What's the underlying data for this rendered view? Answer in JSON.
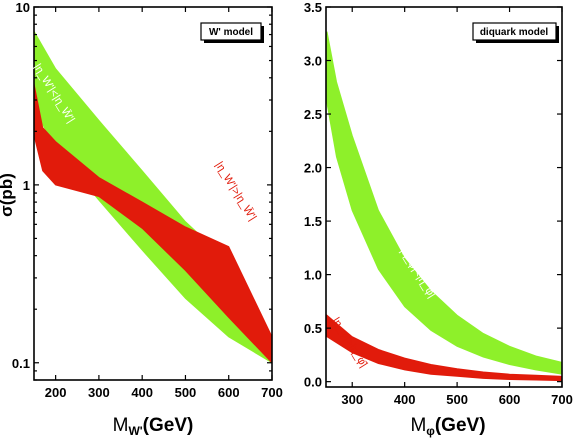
{
  "chart_data": [
    {
      "type": "area",
      "legend": "W' model",
      "yscale": "log",
      "xlabel": "M",
      "xlabel_sub": "W'",
      "xlabel_unit": "(GeV)",
      "ylabel": "σ(pb)",
      "xlim": [
        150,
        700
      ],
      "ylim": [
        0.08,
        10
      ],
      "x_ticks": [
        200,
        300,
        400,
        500,
        600,
        700
      ],
      "y_ticks": [
        {
          "value": 0.1,
          "label": "0.1"
        },
        {
          "value": 1,
          "label": "1"
        },
        {
          "value": 10,
          "label": "10"
        }
      ],
      "series": [
        {
          "name": "|η_W'|<|η_W̄'|",
          "color": "#8ef02a",
          "label_color": "#ffffff",
          "x": [
            150,
            200,
            300,
            400,
            500,
            600,
            700
          ],
          "upper": [
            7.3,
            4.5,
            2.3,
            1.2,
            0.62,
            0.37,
            0.14
          ],
          "lower": [
            2.7,
            1.6,
            0.82,
            0.43,
            0.23,
            0.14,
            0.1
          ]
        },
        {
          "name": "|η_W'|>|η_W̄'|",
          "color": "#e11b0b",
          "label_color": "#e11b0b",
          "x": [
            150,
            170,
            200,
            300,
            400,
            500,
            600,
            700
          ],
          "upper": [
            3.7,
            2.1,
            1.75,
            1.1,
            0.8,
            0.58,
            0.45,
            0.14
          ],
          "lower": [
            1.9,
            1.2,
            1.0,
            0.86,
            0.57,
            0.33,
            0.18,
            0.1
          ]
        }
      ],
      "annotations": [
        {
          "text": "|η_W'|<|η_W̄'|",
          "x": 190,
          "y": 3.2,
          "color": "#ffffff"
        },
        {
          "text": "|η_W'|>|η_W̄'|",
          "x": 610,
          "y": 0.9,
          "color": "#e11b0b"
        }
      ]
    },
    {
      "type": "area",
      "legend": "diquark model",
      "yscale": "linear",
      "xlabel": "M",
      "xlabel_sub": "φ",
      "xlabel_unit": "(GeV)",
      "xlim": [
        250,
        700
      ],
      "ylim": [
        -0.05,
        3.5
      ],
      "x_ticks": [
        300,
        400,
        500,
        600,
        700
      ],
      "y_ticks": [
        {
          "value": 0.0,
          "label": "0.0"
        },
        {
          "value": 0.5,
          "label": "0.5"
        },
        {
          "value": 1.0,
          "label": "1.0"
        },
        {
          "value": 1.5,
          "label": "1.5"
        },
        {
          "value": 2.0,
          "label": "2.0"
        },
        {
          "value": 2.5,
          "label": "2.5"
        },
        {
          "value": 3.0,
          "label": "3.0"
        },
        {
          "value": 3.5,
          "label": "3.5"
        }
      ],
      "series": [
        {
          "name": "|η_φ|<|η_φ̄|",
          "color": "#8ef02a",
          "label_color": "#ffffff",
          "x": [
            252,
            270,
            300,
            350,
            400,
            450,
            500,
            550,
            600,
            650,
            700
          ],
          "upper": [
            3.27,
            2.8,
            2.3,
            1.6,
            1.15,
            0.85,
            0.62,
            0.45,
            0.33,
            0.24,
            0.18
          ],
          "lower": [
            2.6,
            2.1,
            1.6,
            1.05,
            0.7,
            0.48,
            0.33,
            0.23,
            0.16,
            0.11,
            0.07
          ]
        },
        {
          "name": "|η_φ|>|η_φ̄|",
          "color": "#e11b0b",
          "label_color": "#e11b0b",
          "x": [
            252,
            300,
            350,
            400,
            450,
            500,
            550,
            600,
            650,
            700
          ],
          "upper": [
            0.62,
            0.42,
            0.3,
            0.22,
            0.16,
            0.12,
            0.09,
            0.07,
            0.06,
            0.05
          ],
          "lower": [
            0.42,
            0.27,
            0.17,
            0.11,
            0.07,
            0.05,
            0.03,
            0.02,
            0.015,
            0.01
          ]
        }
      ],
      "annotations": [
        {
          "text": "|η_φ|<|η_φ̄|",
          "x": 420,
          "y": 1.0,
          "color": "#ffffff"
        },
        {
          "text": "|η_φ|>|η_φ̄|",
          "x": 290,
          "y": 0.35,
          "color": "#e11b0b"
        }
      ]
    }
  ]
}
